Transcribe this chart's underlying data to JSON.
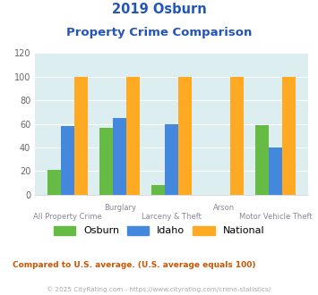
{
  "title_line1": "2019 Osburn",
  "title_line2": "Property Crime Comparison",
  "categories": [
    "All Property Crime",
    "Burglary",
    "Larceny & Theft",
    "Arson",
    "Motor Vehicle Theft"
  ],
  "osburn": [
    21,
    57,
    8,
    0,
    59
  ],
  "idaho": [
    58,
    65,
    60,
    0,
    40
  ],
  "national": [
    100,
    100,
    100,
    100,
    100
  ],
  "colors": {
    "osburn": "#66bb44",
    "idaho": "#4488dd",
    "national": "#ffaa22"
  },
  "ylim": [
    0,
    120
  ],
  "yticks": [
    0,
    20,
    40,
    60,
    80,
    100,
    120
  ],
  "title_color": "#2255bb",
  "label_color": "#888899",
  "footnote1": "Compared to U.S. average. (U.S. average equals 100)",
  "footnote2": "© 2025 CityRating.com - https://www.cityrating.com/crime-statistics/",
  "footnote1_color": "#cc5500",
  "footnote2_color": "#aaaaaa",
  "bg_color": "#ddeef0",
  "fig_bg_color": "#ffffff",
  "legend_labels": [
    "Osburn",
    "Idaho",
    "National"
  ],
  "top_row_labels": {
    "1": "Burglary",
    "3": "Arson"
  },
  "bottom_row_labels": {
    "0": "All Property Crime",
    "2": "Larceny & Theft",
    "4": "Motor Vehicle Theft"
  }
}
